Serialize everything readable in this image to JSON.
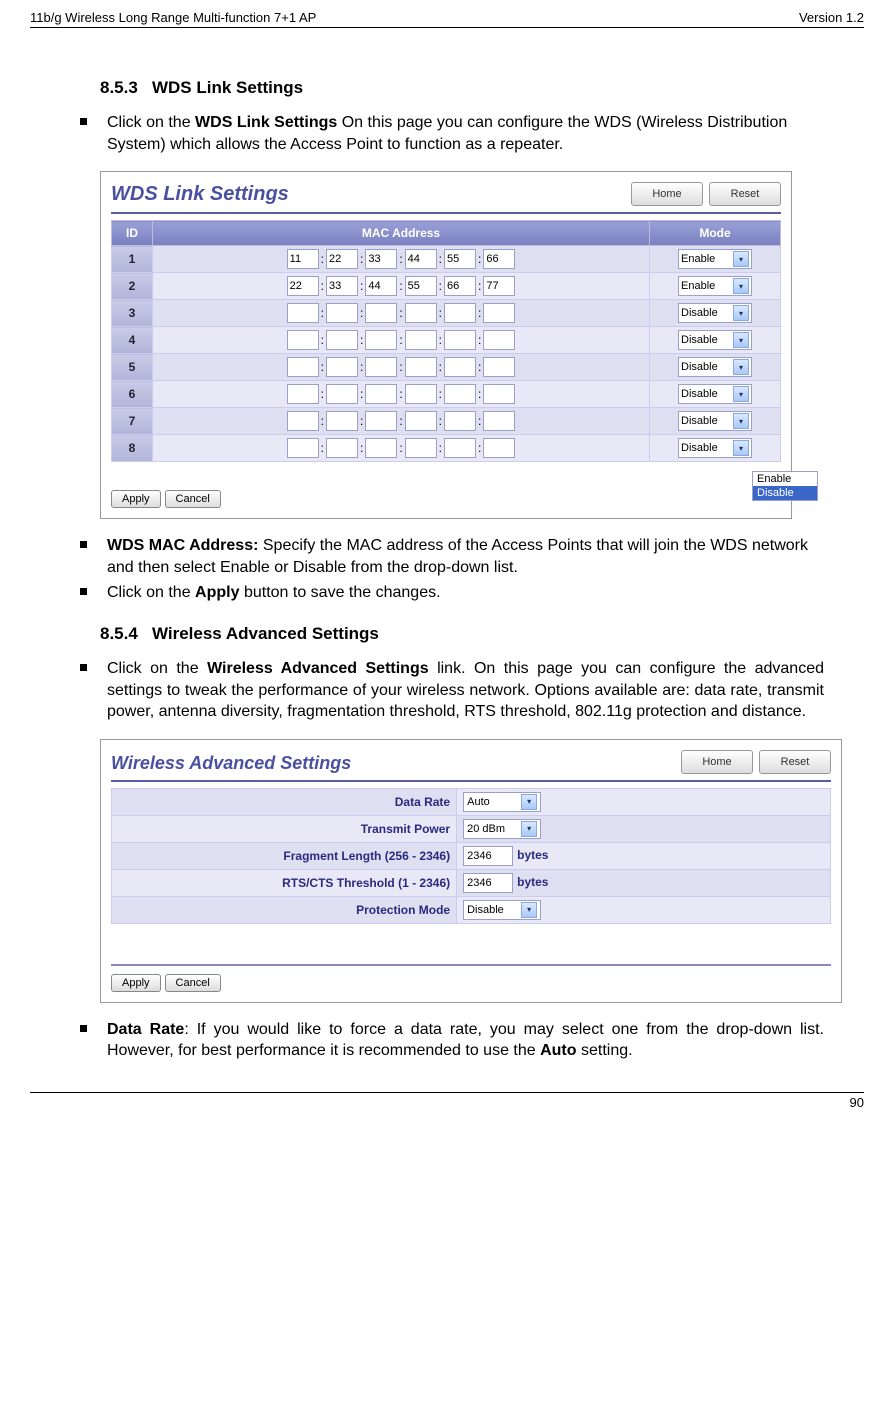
{
  "header": {
    "left": "11b/g Wireless Long Range Multi-function 7+1 AP",
    "right": "Version 1.2"
  },
  "sec853": {
    "num": "8.5.3",
    "title": "WDS Link Settings",
    "bullet1_a": "Click on the ",
    "bullet1_b": "WDS Link Settings",
    "bullet1_c": "  On this page you can configure the WDS (Wireless Distribution System) which allows the Access Point to function as a repeater."
  },
  "wds_shot": {
    "title": "WDS Link Settings",
    "home": "Home",
    "reset": "Reset",
    "col_id": "ID",
    "col_mac": "MAC Address",
    "col_mode": "Mode",
    "rows": [
      {
        "id": "1",
        "mac": [
          "11",
          "22",
          "33",
          "44",
          "55",
          "66"
        ],
        "mode": "Enable"
      },
      {
        "id": "2",
        "mac": [
          "22",
          "33",
          "44",
          "55",
          "66",
          "77"
        ],
        "mode": "Enable"
      },
      {
        "id": "3",
        "mac": [
          "",
          "",
          "",
          "",
          "",
          ""
        ],
        "mode": "Disable"
      },
      {
        "id": "4",
        "mac": [
          "",
          "",
          "",
          "",
          "",
          ""
        ],
        "mode": "Disable"
      },
      {
        "id": "5",
        "mac": [
          "",
          "",
          "",
          "",
          "",
          ""
        ],
        "mode": "Disable"
      },
      {
        "id": "6",
        "mac": [
          "",
          "",
          "",
          "",
          "",
          ""
        ],
        "mode": "Disable"
      },
      {
        "id": "7",
        "mac": [
          "",
          "",
          "",
          "",
          "",
          ""
        ],
        "mode": "Disable"
      },
      {
        "id": "8",
        "mac": [
          "",
          "",
          "",
          "",
          "",
          ""
        ],
        "mode": "Disable"
      }
    ],
    "dd_opts": [
      "Enable",
      "Disable"
    ],
    "apply": "Apply",
    "cancel": "Cancel"
  },
  "after_wds": {
    "b1_a": "WDS MAC Address:",
    "b1_b": " Specify the MAC address of the Access Points that will join the WDS network and then select Enable or Disable from the drop-down list.",
    "b2_a": "Click on the ",
    "b2_b": "Apply",
    "b2_c": " button to save the changes."
  },
  "sec854": {
    "num": "8.5.4",
    "title": "Wireless Advanced Settings",
    "bullet_a": "Click on the ",
    "bullet_b": "Wireless Advanced Settings",
    "bullet_c": " link. On this page you can configure the advanced settings to tweak the performance of your wireless network. Options available are: data rate, transmit power, antenna diversity, fragmentation threshold, RTS threshold, 802.11g protection and distance."
  },
  "adv_shot": {
    "title": "Wireless Advanced Settings",
    "home": "Home",
    "reset": "Reset",
    "rows": [
      {
        "label": "Data Rate",
        "type": "select",
        "value": "Auto"
      },
      {
        "label": "Transmit Power",
        "type": "select",
        "value": "20 dBm"
      },
      {
        "label": "Fragment Length (256 - 2346)",
        "type": "text",
        "value": "2346",
        "unit": "bytes"
      },
      {
        "label": "RTS/CTS Threshold (1 - 2346)",
        "type": "text",
        "value": "2346",
        "unit": "bytes"
      },
      {
        "label": "Protection Mode",
        "type": "select",
        "value": "Disable"
      }
    ],
    "apply": "Apply",
    "cancel": "Cancel"
  },
  "after_adv": {
    "b1_a": "Data Rate",
    "b1_b": ": If you would like to force a data rate, you may select one from the drop-down list. However, for best performance it is recommended to use the ",
    "b1_c": "Auto",
    "b1_d": " setting."
  },
  "footer": {
    "page": "90"
  }
}
